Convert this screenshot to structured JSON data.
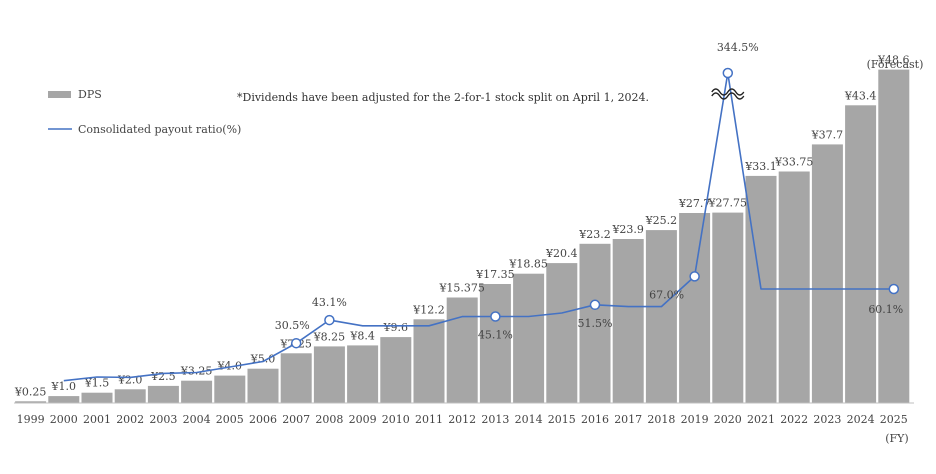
{
  "chart_data": {
    "type": "bar",
    "note": "*Dividends have been adjusted for the 2-for-1 stock split on April 1, 2024.",
    "x_unit_label": "(FY)",
    "forecast_label": "(Forecast)",
    "categories": [
      "1999",
      "2000",
      "2001",
      "2002",
      "2003",
      "2004",
      "2005",
      "2006",
      "2007",
      "2008",
      "2009",
      "2010",
      "2011",
      "2012",
      "2013",
      "2014",
      "2015",
      "2016",
      "2017",
      "2018",
      "2019",
      "2020",
      "2021",
      "2022",
      "2023",
      "2024",
      "2025"
    ],
    "series": [
      {
        "name": "DPS",
        "type": "bar",
        "color": "#a6a6a6",
        "values": [
          0.25,
          1.0,
          1.5,
          2.0,
          2.5,
          3.25,
          4.0,
          5.0,
          7.25,
          8.25,
          8.4,
          9.6,
          12.2,
          15.375,
          17.35,
          18.85,
          20.4,
          23.2,
          23.9,
          25.2,
          27.7,
          27.75,
          33.1,
          33.75,
          37.7,
          43.4,
          48.6
        ],
        "labels": [
          "¥0.25",
          "¥1.0",
          "¥1.5",
          "¥2.0",
          "¥2.5",
          "¥3.25",
          "¥4.0",
          "¥5.0",
          "¥7.25",
          "¥8.25",
          "¥8.4",
          "¥9.6",
          "¥12.2",
          "¥15.375",
          "¥17.35",
          "¥18.85",
          "¥20.4",
          "¥23.2",
          "¥23.9",
          "¥25.2",
          "¥27.7",
          "¥27.75",
          "¥33.1",
          "¥33.75",
          "¥37.7",
          "¥43.4",
          "¥48.6"
        ]
      },
      {
        "name": "Consolidated payout ratio(%)",
        "type": "line",
        "color": "#4472c4",
        "values": [
          null,
          10.0,
          12.0,
          11.8,
          14.0,
          14.5,
          17.5,
          20.5,
          30.5,
          43.1,
          40.0,
          40.0,
          40.0,
          45.0,
          45.1,
          45.1,
          47.0,
          51.5,
          50.5,
          50.5,
          67.0,
          344.5,
          60.1,
          60.1,
          60.1,
          60.1,
          60.1
        ],
        "labeled_points": [
          {
            "category": "2007",
            "label": "30.5%"
          },
          {
            "category": "2008",
            "label": "43.1%"
          },
          {
            "category": "2013",
            "label": "45.1%"
          },
          {
            "category": "2016",
            "label": "51.5%"
          },
          {
            "category": "2019",
            "label": "67.0%"
          },
          {
            "category": "2020",
            "label": "344.5%"
          },
          {
            "category": "2025",
            "label": "60.1%"
          }
        ],
        "axis_break_at": "2020"
      }
    ]
  }
}
